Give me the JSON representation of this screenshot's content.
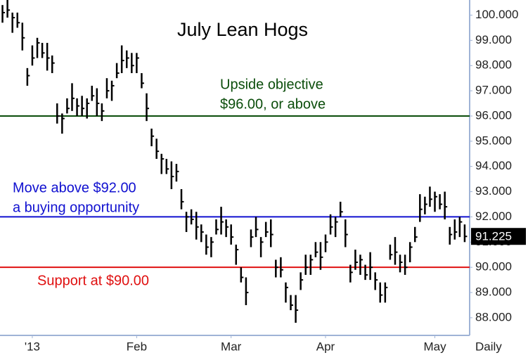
{
  "chart_data": {
    "type": "ohlc",
    "title": "July Lean Hogs",
    "period_label": "Daily",
    "color": "#000000",
    "xlim": [
      -0.5,
      94
    ],
    "xticks": [
      {
        "value": 6,
        "label": "'13"
      },
      {
        "value": 27,
        "label": "Feb"
      },
      {
        "value": 46,
        "label": "Mar"
      },
      {
        "value": 65,
        "label": "Apr"
      },
      {
        "value": 87,
        "label": "May"
      }
    ],
    "ylim": [
      87.3,
      100.6
    ],
    "yticks": [
      {
        "value": 88,
        "label": "88.000"
      },
      {
        "value": 89,
        "label": "89.000"
      },
      {
        "value": 90,
        "label": "90.000"
      },
      {
        "value": 91,
        "label": "91.000"
      },
      {
        "value": 92,
        "label": "92.000"
      },
      {
        "value": 93,
        "label": "93.000"
      },
      {
        "value": 94,
        "label": "94.000"
      },
      {
        "value": 95,
        "label": "95.000"
      },
      {
        "value": 96,
        "label": "96.000"
      },
      {
        "value": 97,
        "label": "97.000"
      },
      {
        "value": 98,
        "label": "98.000"
      },
      {
        "value": 99,
        "label": "99.000"
      },
      {
        "value": 100,
        "label": "100.000"
      }
    ],
    "last_price": 91.225,
    "high": [
      100.4,
      100.7,
      100.1,
      100.1,
      99.7,
      97.9,
      98.8,
      99.1,
      98.9,
      98.9,
      98.4,
      96.5,
      96.1,
      96.7,
      97.3,
      96.7,
      96.8,
      96.7,
      97.2,
      97.1,
      96.5,
      97.5,
      97.4,
      98.1,
      98.8,
      98.6,
      98.5,
      98.5,
      97.7,
      96.9,
      95.5,
      95.1,
      94.5,
      94.3,
      94.2,
      94.1,
      93.1,
      92.2,
      92.3,
      92.2,
      91.7,
      91.3,
      91.2,
      91.9,
      92.4,
      91.9,
      91.7,
      90.9,
      90.0,
      89.6,
      91.5,
      92.0,
      91.2,
      91.8,
      91.9,
      90.3,
      90.4,
      89.4,
      88.9,
      88.9,
      89.8,
      90.5,
      90.5,
      91.0,
      91.0,
      91.3,
      92.1,
      92.0,
      92.6,
      91.9,
      90.1,
      90.7,
      90.5,
      90.1,
      90.6,
      89.8,
      89.4,
      89.4,
      90.9,
      91.2,
      90.5,
      90.5,
      91.0,
      91.6,
      92.9,
      92.8,
      93.2,
      93.0,
      92.9,
      93.0,
      91.6,
      91.9,
      92.0,
      91.7
    ],
    "low": [
      99.7,
      99.9,
      99.3,
      99.5,
      98.6,
      97.2,
      98.0,
      98.3,
      98.3,
      97.8,
      97.7,
      95.7,
      95.3,
      96.1,
      96.2,
      96.0,
      96.0,
      95.9,
      96.6,
      96.0,
      95.8,
      96.7,
      96.6,
      97.5,
      97.7,
      97.9,
      97.7,
      97.7,
      97.1,
      95.8,
      94.8,
      94.3,
      93.7,
      93.7,
      93.1,
      93.4,
      92.3,
      91.4,
      91.7,
      91.1,
      91.0,
      90.5,
      90.4,
      91.3,
      91.3,
      91.2,
      90.9,
      90.1,
      89.4,
      88.5,
      90.8,
      91.2,
      90.4,
      91.2,
      90.8,
      89.6,
      89.6,
      88.6,
      88.3,
      87.8,
      89.1,
      89.7,
      89.7,
      90.4,
      89.9,
      90.6,
      91.3,
      91.2,
      92.0,
      90.8,
      89.4,
      89.9,
      89.7,
      89.5,
      89.5,
      89.1,
      88.6,
      88.6,
      90.3,
      90.1,
      89.8,
      89.7,
      90.2,
      91.0,
      91.8,
      92.1,
      92.4,
      92.2,
      92.3,
      91.9,
      90.9,
      91.1,
      91.2,
      91.0
    ],
    "close": [
      100.1,
      100.2,
      99.9,
      99.7,
      99.1,
      97.6,
      98.3,
      98.9,
      98.5,
      98.3,
      98.1,
      96.0,
      95.9,
      96.3,
      96.7,
      96.4,
      96.3,
      96.5,
      96.8,
      96.5,
      96.2,
      97.0,
      97.2,
      97.7,
      98.2,
      98.3,
      98.0,
      98.3,
      97.3,
      96.3,
      95.2,
      94.6,
      94.3,
      93.9,
      93.6,
      93.8,
      92.6,
      92.0,
      91.9,
      91.6,
      91.4,
      90.8,
      91.0,
      91.5,
      91.8,
      91.6,
      91.2,
      90.7,
      89.6,
      89.0,
      91.2,
      91.5,
      91.0,
      91.4,
      91.3,
      90.0,
      89.9,
      89.2,
      88.5,
      88.3,
      89.5,
      90.0,
      90.3,
      90.6,
      90.4,
      91.0,
      91.6,
      91.8,
      92.2,
      91.3,
      89.8,
      90.2,
      90.3,
      89.7,
      90.0,
      89.5,
      88.9,
      89.2,
      90.5,
      90.6,
      90.2,
      90.0,
      90.8,
      91.2,
      92.3,
      92.5,
      92.7,
      92.8,
      92.5,
      92.4,
      91.3,
      91.4,
      91.8,
      91.225
    ],
    "reference_lines": [
      {
        "value": 96,
        "color": "#0b4d0b"
      },
      {
        "value": 92,
        "color": "#1010d0"
      },
      {
        "value": 90,
        "color": "#e01010"
      }
    ],
    "annotations": [
      {
        "lines": [
          "Upside objective",
          "$96.00, or above"
        ],
        "color": "#0b4d0b"
      },
      {
        "lines": [
          "Move above $92.00",
          "a buying opportunity"
        ],
        "color": "#1010d0"
      },
      {
        "lines": [
          "Support at $90.00"
        ],
        "color": "#e01010"
      }
    ]
  }
}
